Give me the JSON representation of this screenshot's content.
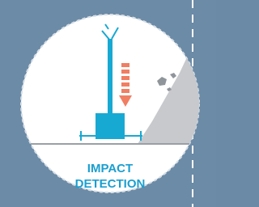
{
  "label": {
    "line1": "IMPACT",
    "line2": "DETECTION"
  }
}
